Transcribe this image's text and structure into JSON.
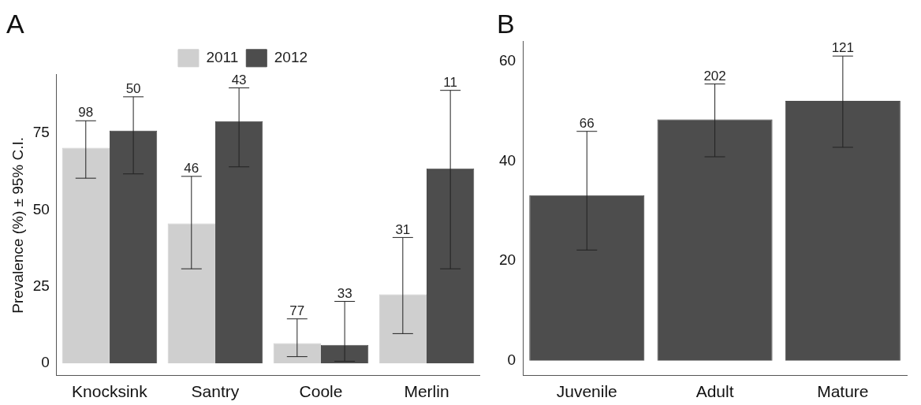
{
  "chart_data": [
    {
      "type": "bar",
      "title": "A",
      "ylabel": "Prevalence (%) ± 95% C.I.",
      "categories": [
        "Knocksink",
        "Santry",
        "Coole",
        "Merlin"
      ],
      "series": [
        {
          "name": "2011",
          "color": "#cfcfcf",
          "values": [
            70.2,
            45.6,
            6.6,
            22.5
          ],
          "errors": [
            [
              60.3,
              79.0
            ],
            [
              30.8,
              60.9
            ],
            [
              2.2,
              14.5
            ],
            [
              9.7,
              41.0
            ]
          ]
        },
        {
          "name": "2012",
          "color": "#4d4d4d",
          "values": [
            75.8,
            78.9,
            6.0,
            63.5
          ],
          "errors": [
            [
              61.7,
              86.8
            ],
            [
              64.0,
              89.7
            ],
            [
              0.7,
              20.2
            ],
            [
              30.8,
              88.9
            ]
          ]
        }
      ],
      "annotations": [
        "98",
        "50",
        "46",
        "43",
        "77",
        "33",
        "31",
        "11"
      ],
      "ylim": [
        -4,
        94
      ],
      "yticks": [
        0,
        25,
        50,
        75
      ],
      "grid": false,
      "legend": "top"
    },
    {
      "type": "bar",
      "title": "B",
      "categories": [
        "Juvenile",
        "Adult",
        "Mature"
      ],
      "series": [
        {
          "color": "#4d4d4d",
          "values": [
            33.2,
            48.4,
            52.1
          ],
          "errors": [
            [
              22.2,
              46.0
            ],
            [
              40.9,
              55.5
            ],
            [
              42.8,
              61.1
            ]
          ]
        }
      ],
      "annotations": [
        "66",
        "202",
        "121"
      ],
      "ylim": [
        -3,
        64
      ],
      "yticks": [
        0,
        20,
        40,
        60
      ],
      "grid": false,
      "legend": false
    }
  ]
}
